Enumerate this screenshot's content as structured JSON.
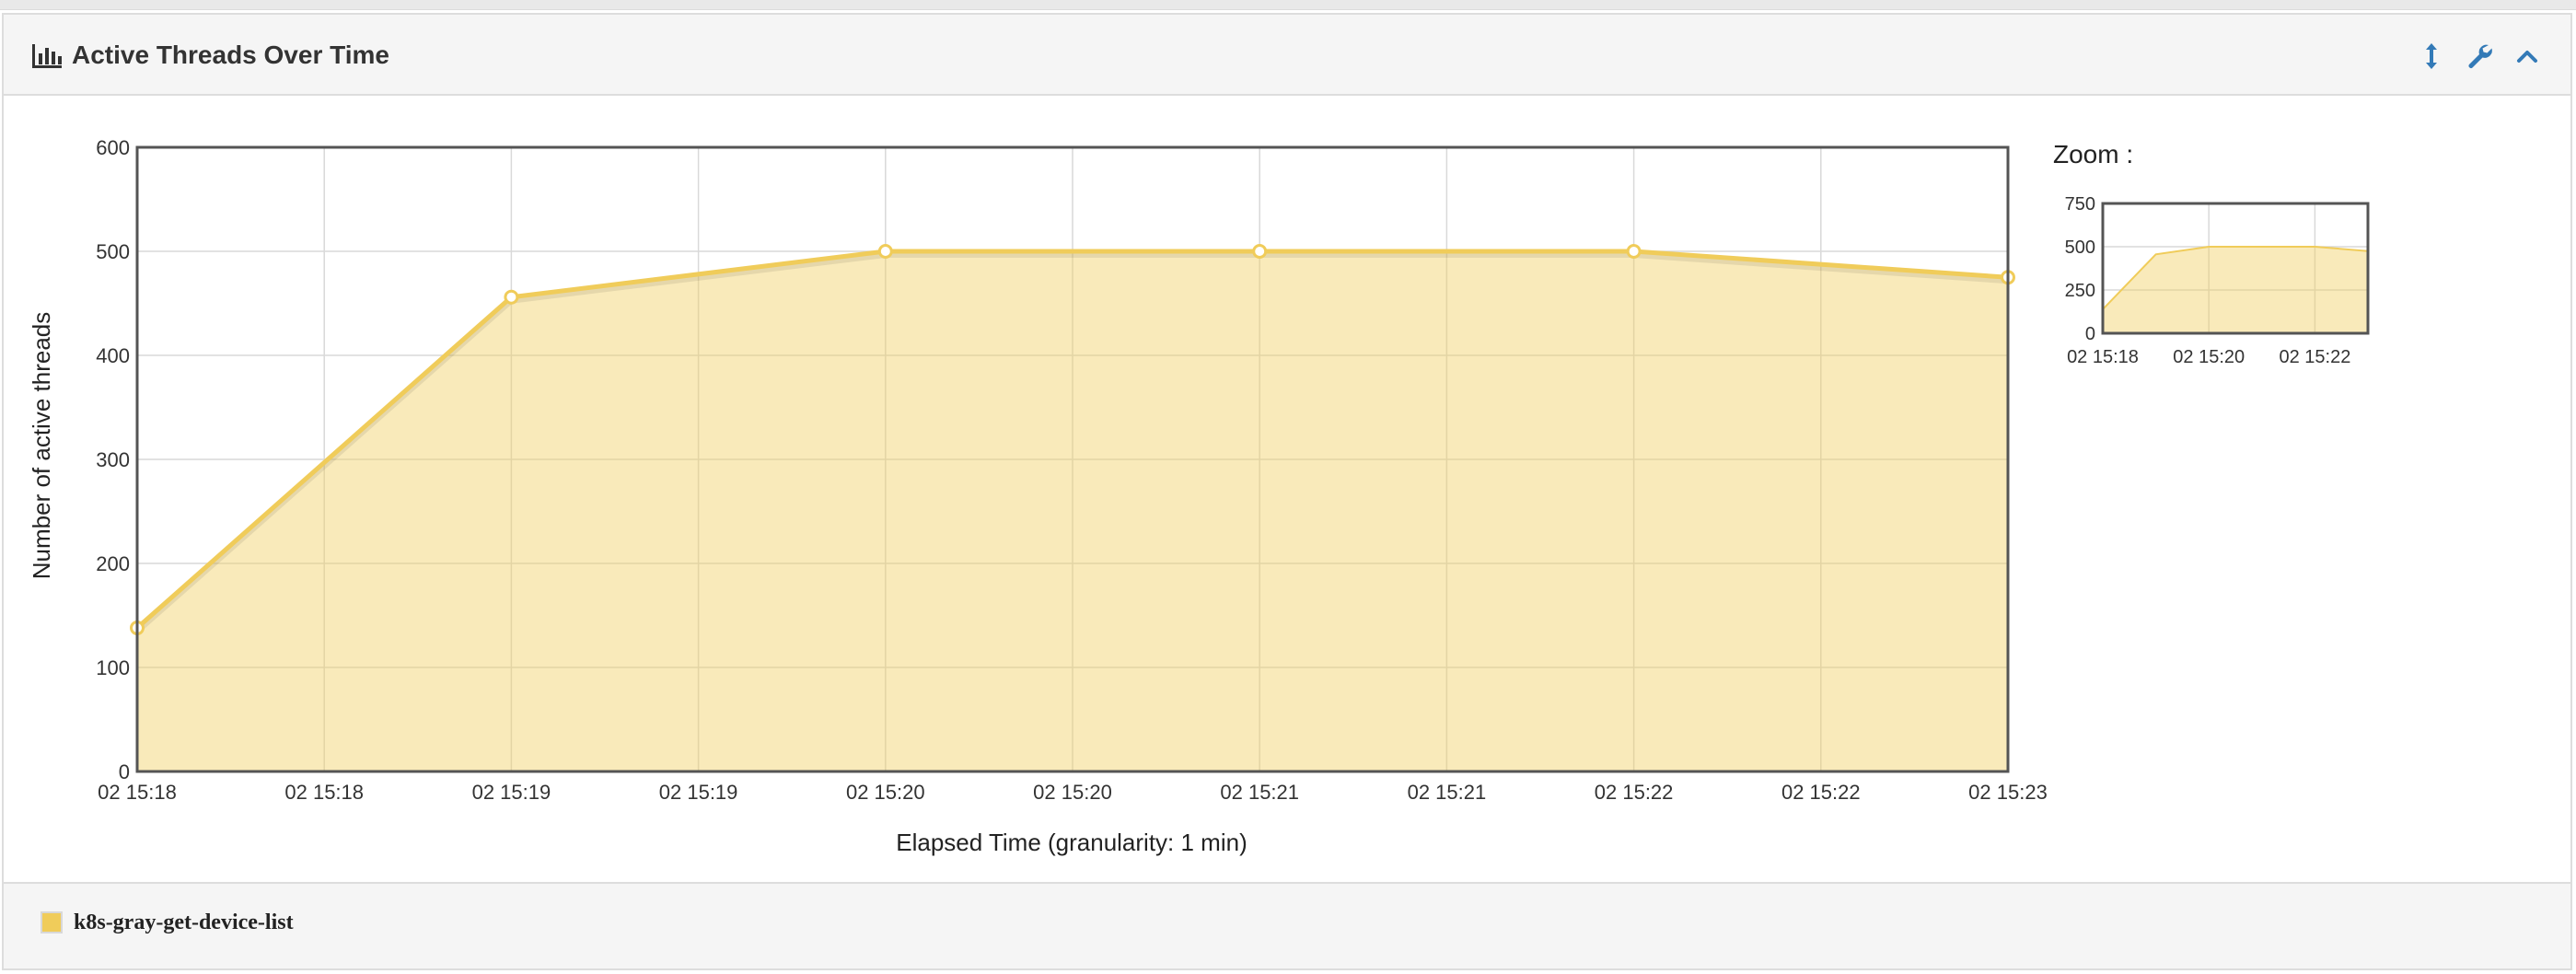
{
  "panel": {
    "title": "Active Threads Over Time",
    "tools": [
      "resize-vertical-icon",
      "wrench-icon",
      "chevron-up-icon"
    ]
  },
  "chart_data": {
    "type": "area",
    "title": "Active Threads Over Time",
    "xlabel": "Elapsed Time (granularity: 1 min)",
    "ylabel": "Number of active threads",
    "x_tick_labels": [
      "02 15:18",
      "02 15:18",
      "02 15:19",
      "02 15:19",
      "02 15:20",
      "02 15:20",
      "02 15:21",
      "02 15:21",
      "02 15:22",
      "02 15:22",
      "02 15:23"
    ],
    "y_ticks": [
      0,
      100,
      200,
      300,
      400,
      500,
      600
    ],
    "ylim": [
      0,
      600
    ],
    "xlim": [
      "02 15:18",
      "02 15:23"
    ],
    "grid": true,
    "series": [
      {
        "name": "k8s-gray-get-device-list",
        "color": "#f0cc5a",
        "x": [
          "02 15:18",
          "02 15:19",
          "02 15:20",
          "02 15:21",
          "02 15:22",
          "02 15:23"
        ],
        "values": [
          138,
          456,
          500,
          500,
          500,
          475
        ]
      }
    ],
    "legend": "bottom-left"
  },
  "zoom": {
    "label": "Zoom :",
    "y_ticks": [
      0,
      250,
      500,
      750
    ],
    "ylim": [
      0,
      750
    ],
    "x_tick_labels": [
      "02 15:18",
      "02 15:20",
      "02 15:22"
    ]
  },
  "legend": {
    "label": "k8s-gray-get-device-list",
    "color": "#f0cc5a"
  }
}
